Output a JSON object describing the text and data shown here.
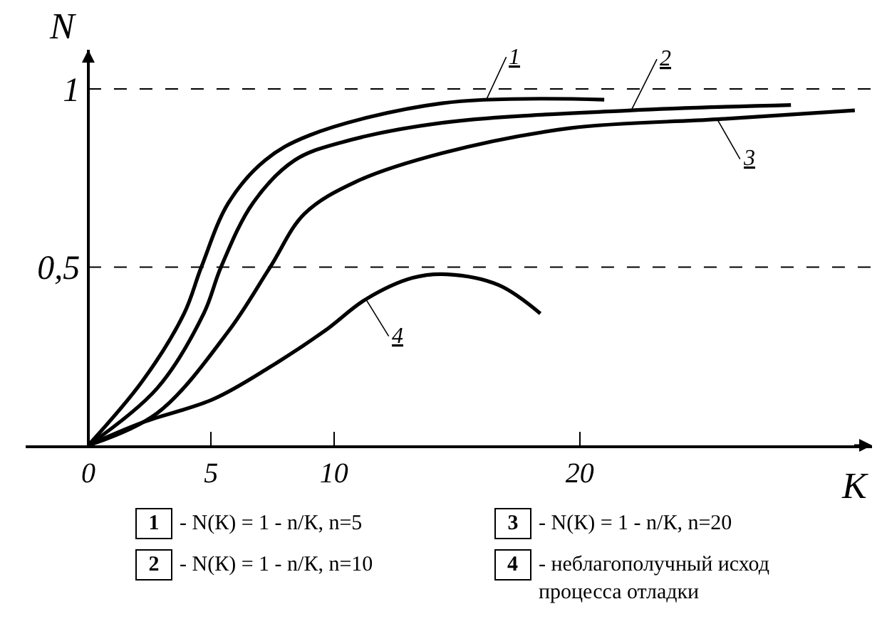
{
  "chart_data": {
    "type": "line",
    "xlabel": "K",
    "ylabel": "N",
    "xlim": [
      -2.55,
      31.9
    ],
    "ylim": [
      0,
      1.11
    ],
    "xticks": [
      0,
      5,
      10,
      20
    ],
    "yticks": [
      {
        "value": 0.5,
        "label": "0,5"
      },
      {
        "value": 1,
        "label": "1"
      }
    ],
    "grid": false,
    "marker": "none",
    "line_style": "solid",
    "series": [
      {
        "color": "#000000",
        "x": [
          0,
          2.2,
          3.9,
          4.6,
          5.7,
          7.2,
          9.0,
          14.4,
          21.0
        ],
        "values": [
          0,
          0.18,
          0.37,
          0.5,
          0.68,
          0.8,
          0.87,
          0.96,
          0.97
        ]
      },
      {
        "color": "#000000",
        "x": [
          0,
          2.8,
          4.7,
          5.4,
          6.7,
          8.4,
          10.3,
          14.4,
          22.1,
          28.6
        ],
        "values": [
          0,
          0.16,
          0.37,
          0.5,
          0.68,
          0.8,
          0.85,
          0.905,
          0.94,
          0.955
        ]
      },
      {
        "color": "#000000",
        "x": [
          0,
          2.8,
          5.7,
          7.4,
          8.8,
          10.9,
          14.4,
          19.6,
          25.6,
          31.2
        ],
        "values": [
          0,
          0.09,
          0.32,
          0.5,
          0.65,
          0.74,
          0.82,
          0.89,
          0.915,
          0.94
        ]
      },
      {
        "color": "#000000",
        "x": [
          0,
          2.2,
          5.1,
          7.4,
          9.6,
          11.3,
          13.2,
          14.6,
          16.7,
          18.4
        ],
        "values": [
          0,
          0.064,
          0.13,
          0.22,
          0.32,
          0.41,
          0.47,
          0.48,
          0.45,
          0.37
        ]
      }
    ],
    "ref_lines": [
      {
        "axis": "y",
        "value": 0.5,
        "color": "#000000",
        "line_style": "dashed"
      },
      {
        "axis": "y",
        "value": 1,
        "color": "#000000",
        "line_style": "dashed"
      }
    ],
    "annotations": [
      {
        "text": "1",
        "x": 16.2,
        "y": 0.97
      },
      {
        "text": "2",
        "x": 22.1,
        "y": 0.94
      },
      {
        "text": "3",
        "x": 25.6,
        "y": 0.915
      },
      {
        "text": "4",
        "x": 11.3,
        "y": 0.41
      },
      "1",
      "- N(К) = 1 - n/К, n=5",
      "2",
      "- N(К) = 1 - n/К, n=10",
      "3",
      "- N(К) = 1 - n/К, n=20",
      "4",
      "- неблагополучный исход\nпроцесса отладки"
    ]
  }
}
